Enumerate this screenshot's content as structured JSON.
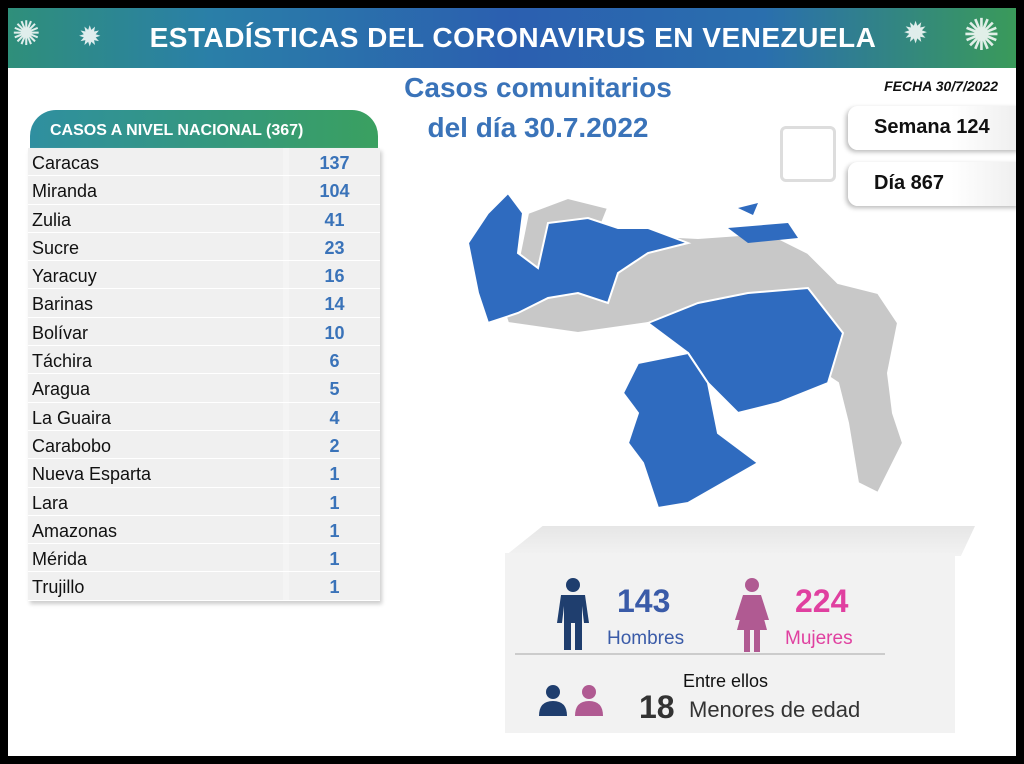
{
  "banner": {
    "title": "ESTADÍSTICAS DEL CORONAVIRUS EN VENEZUELA"
  },
  "subtitle": {
    "line1": "Casos comunitarios",
    "line2": "del día 30.7.2022"
  },
  "fecha": "FECHA 30/7/2022",
  "semana": "Semana 124",
  "dia": "Día 867",
  "table": {
    "header": "CASOS A NIVEL NACIONAL  (367)",
    "rows": [
      [
        "Caracas",
        "137"
      ],
      [
        "Miranda",
        "104"
      ],
      [
        "Zulia",
        "41"
      ],
      [
        "Sucre",
        "23"
      ],
      [
        "Yaracuy",
        "16"
      ],
      [
        "Barinas",
        "14"
      ],
      [
        "Bolívar",
        "10"
      ],
      [
        "Táchira",
        "6"
      ],
      [
        "Aragua",
        "5"
      ],
      [
        "La Guaira",
        "4"
      ],
      [
        "Carabobo",
        "2"
      ],
      [
        "Nueva Esparta",
        "1"
      ],
      [
        "Lara",
        "1"
      ],
      [
        "Amazonas",
        "1"
      ],
      [
        "Mérida",
        "1"
      ],
      [
        "Trujillo",
        "1"
      ]
    ]
  },
  "gender": {
    "men_count": "143",
    "men_label": "Hombres",
    "women_count": "224",
    "women_label": "Mujeres",
    "between": "Entre ellos",
    "minors_count": "18",
    "minors_label": "Menores de edad"
  },
  "colors": {
    "blue": "#3a73b9",
    "men": "#1f3e6e",
    "women": "#b05a92",
    "women_text": "#e040a0",
    "map_blue": "#2f6bbf",
    "map_gray": "#c8c8c8"
  }
}
